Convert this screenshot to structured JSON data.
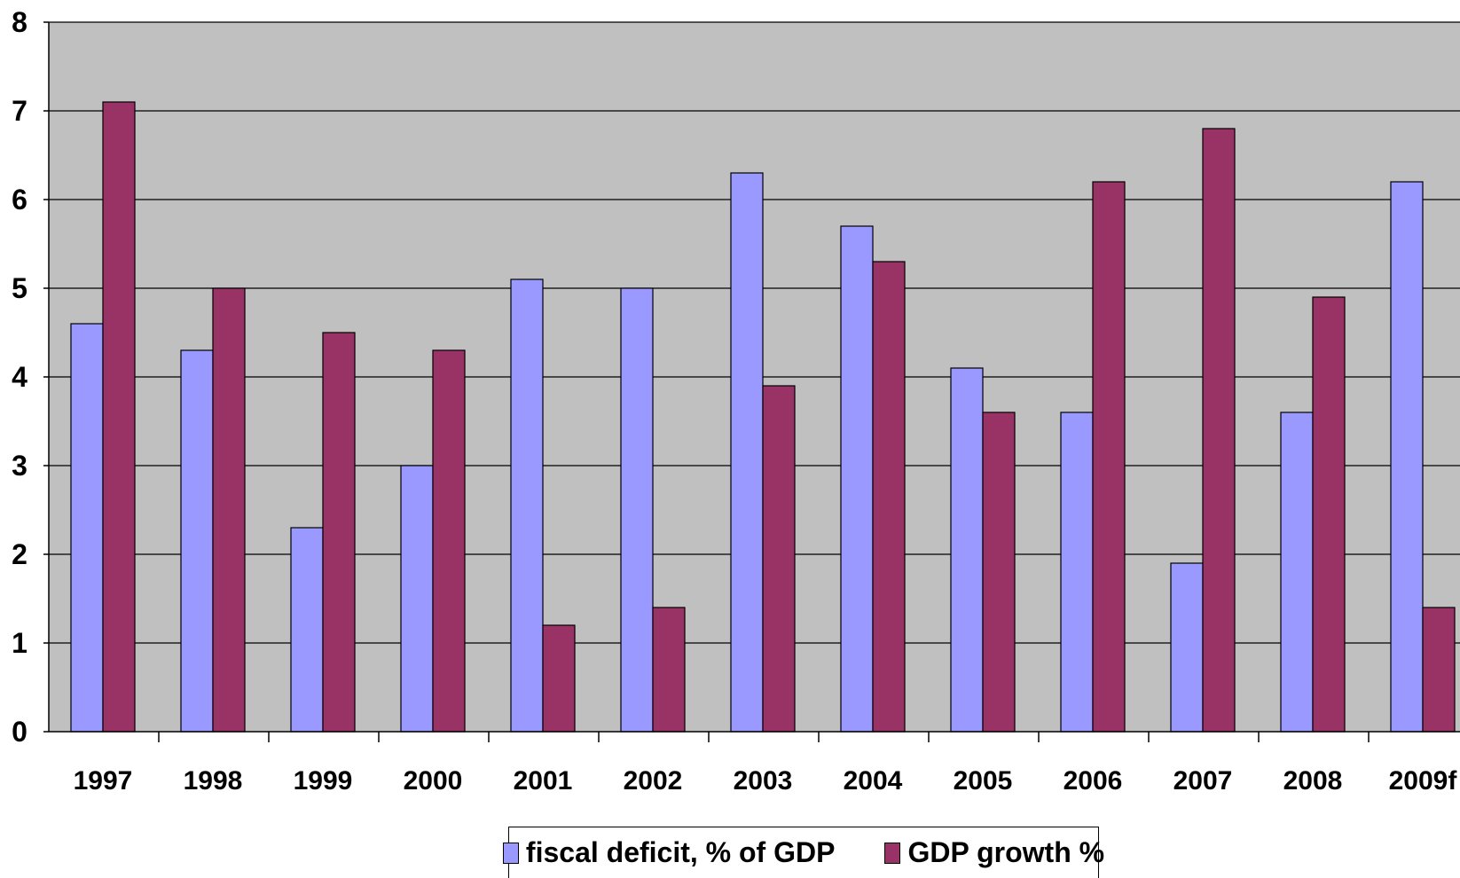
{
  "chart_data": {
    "type": "bar",
    "categories": [
      "1997",
      "1998",
      "1999",
      "2000",
      "2001",
      "2002",
      "2003",
      "2004",
      "2005",
      "2006",
      "2007",
      "2008",
      "2009f"
    ],
    "series": [
      {
        "name": "fiscal deficit, % of GDP",
        "color": "#9999ff",
        "values": [
          4.6,
          4.3,
          2.3,
          3.0,
          5.1,
          5.0,
          6.3,
          5.7,
          4.1,
          3.6,
          1.9,
          3.6,
          6.2
        ]
      },
      {
        "name": "GDP growth %",
        "color": "#993366",
        "values": [
          7.1,
          5.0,
          4.5,
          4.3,
          1.2,
          1.4,
          3.9,
          5.3,
          3.6,
          6.2,
          6.8,
          4.9,
          1.4
        ]
      }
    ],
    "ylim": [
      0,
      8
    ],
    "yticks": [
      "0",
      "1",
      "2",
      "3",
      "4",
      "5",
      "6",
      "7",
      "8"
    ],
    "grid": true,
    "plot_background": "#c0c0c0",
    "legend_position": "bottom"
  }
}
